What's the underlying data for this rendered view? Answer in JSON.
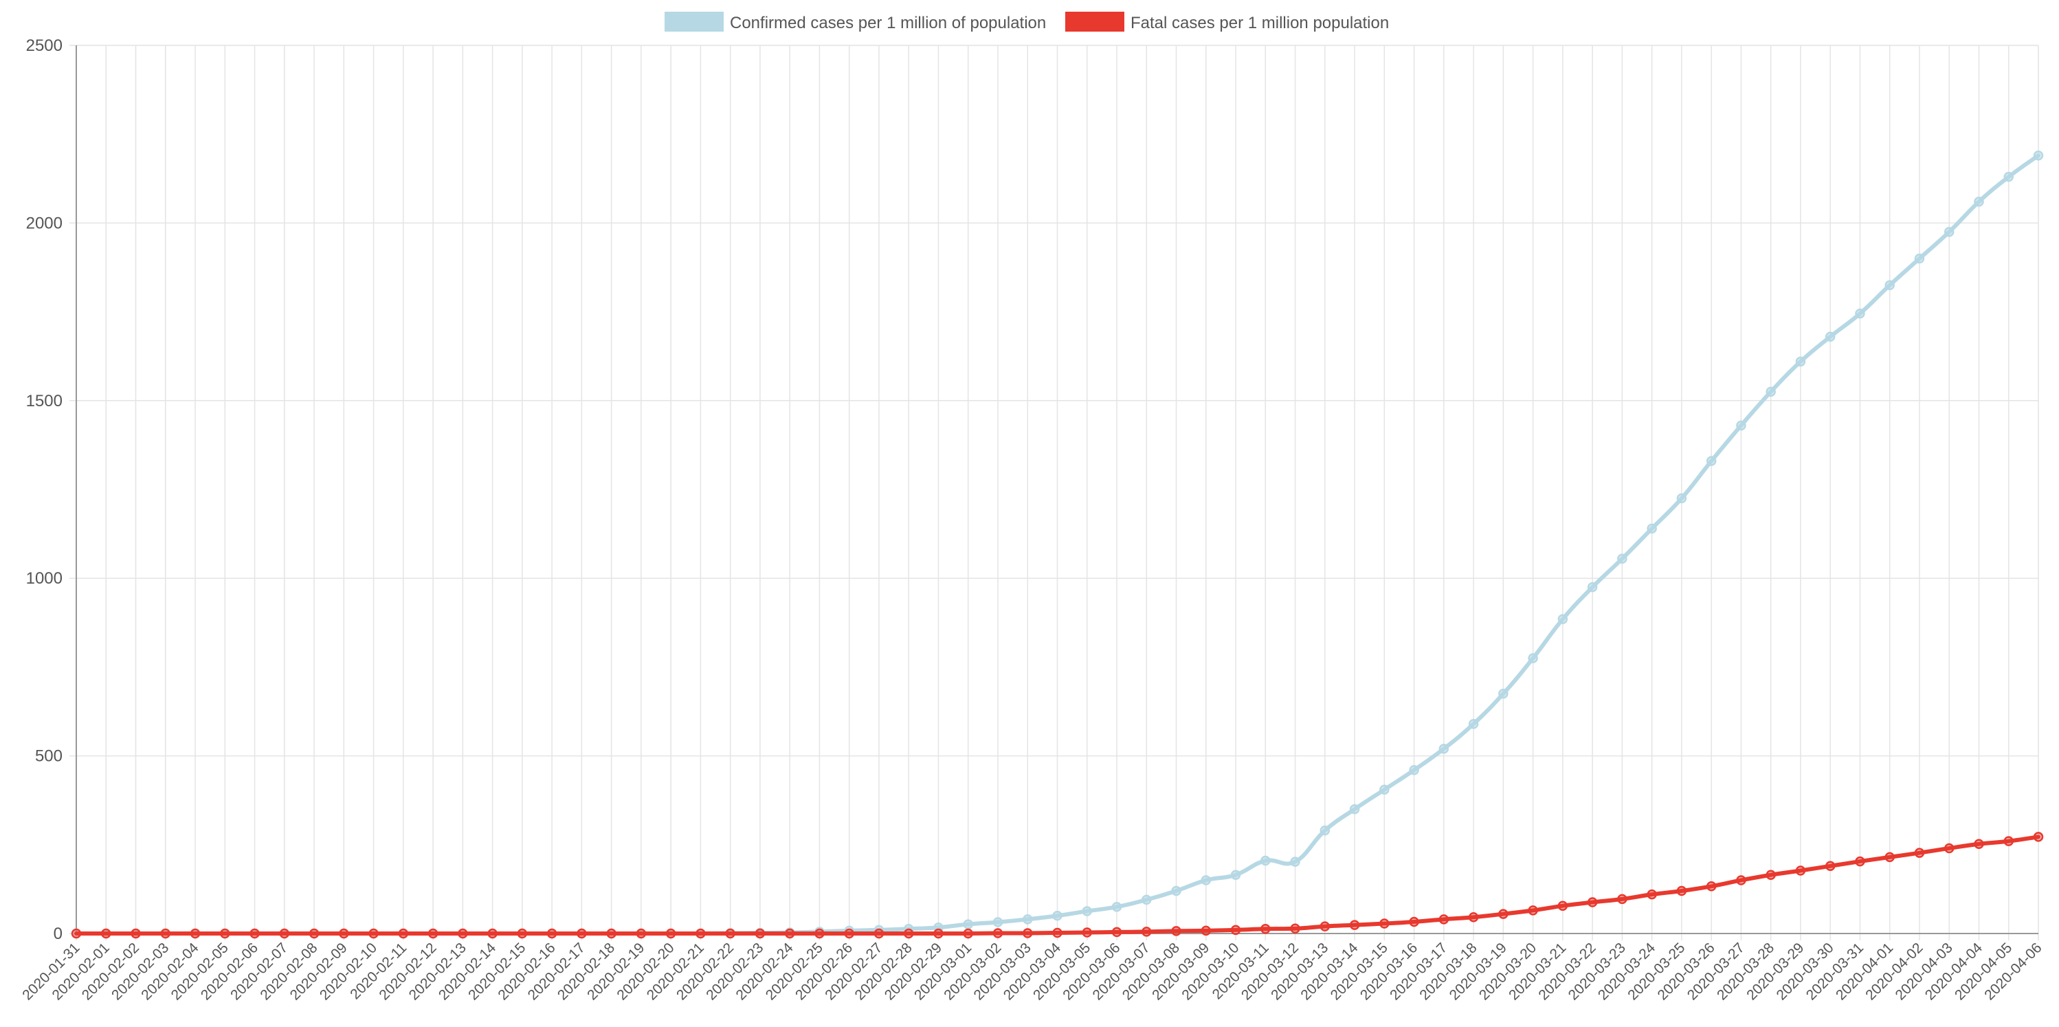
{
  "chart_data": {
    "type": "line",
    "title": "",
    "xlabel": "",
    "ylabel": "",
    "ylim": [
      0,
      2500
    ],
    "yticks": [
      0,
      500,
      1000,
      1500,
      2000,
      2500
    ],
    "grid": true,
    "legend_position": "top-center",
    "categories": [
      "2020-01-31",
      "2020-02-01",
      "2020-02-02",
      "2020-02-03",
      "2020-02-04",
      "2020-02-05",
      "2020-02-06",
      "2020-02-07",
      "2020-02-08",
      "2020-02-09",
      "2020-02-10",
      "2020-02-11",
      "2020-02-12",
      "2020-02-13",
      "2020-02-14",
      "2020-02-15",
      "2020-02-16",
      "2020-02-17",
      "2020-02-18",
      "2020-02-19",
      "2020-02-20",
      "2020-02-21",
      "2020-02-22",
      "2020-02-23",
      "2020-02-24",
      "2020-02-25",
      "2020-02-26",
      "2020-02-27",
      "2020-02-28",
      "2020-02-29",
      "2020-03-01",
      "2020-03-02",
      "2020-03-03",
      "2020-03-04",
      "2020-03-05",
      "2020-03-06",
      "2020-03-07",
      "2020-03-08",
      "2020-03-09",
      "2020-03-10",
      "2020-03-11",
      "2020-03-12",
      "2020-03-13",
      "2020-03-14",
      "2020-03-15",
      "2020-03-16",
      "2020-03-17",
      "2020-03-18",
      "2020-03-19",
      "2020-03-20",
      "2020-03-21",
      "2020-03-22",
      "2020-03-23",
      "2020-03-24",
      "2020-03-25",
      "2020-03-26",
      "2020-03-27",
      "2020-03-28",
      "2020-03-29",
      "2020-03-30",
      "2020-03-31",
      "2020-04-01",
      "2020-04-02",
      "2020-04-03",
      "2020-04-04",
      "2020-04-05",
      "2020-04-06"
    ],
    "series": [
      {
        "name": "Confirmed cases per 1 million of population",
        "color": "#b6d8e4",
        "values": [
          0,
          0,
          0,
          0,
          0,
          0,
          0,
          0,
          0,
          0,
          0,
          0,
          0,
          0,
          0,
          0,
          0,
          0,
          0,
          0,
          0,
          0,
          1,
          2,
          3,
          5,
          8,
          10,
          13,
          17,
          26,
          32,
          40,
          50,
          63,
          75,
          95,
          120,
          150,
          165,
          205,
          202,
          290,
          350,
          405,
          460,
          520,
          590,
          675,
          775,
          885,
          975,
          1055,
          1140,
          1225,
          1330,
          1430,
          1525,
          1610,
          1680,
          1745,
          1825,
          1900,
          1975,
          2060,
          2130,
          2190
        ]
      },
      {
        "name": "Fatal cases per 1 million population",
        "color": "#e8392e",
        "values": [
          0,
          0,
          0,
          0,
          0,
          0,
          0,
          0,
          0,
          0,
          0,
          0,
          0,
          0,
          0,
          0,
          0,
          0,
          0,
          0,
          0,
          0,
          0,
          0,
          0,
          0,
          0,
          0,
          0,
          0,
          0,
          1,
          1,
          2,
          3,
          4,
          5,
          7,
          8,
          10,
          13,
          14,
          20,
          24,
          28,
          33,
          40,
          46,
          55,
          65,
          78,
          88,
          97,
          110,
          120,
          133,
          150,
          165,
          177,
          190,
          203,
          215,
          227,
          240,
          252,
          260,
          272
        ]
      }
    ]
  }
}
